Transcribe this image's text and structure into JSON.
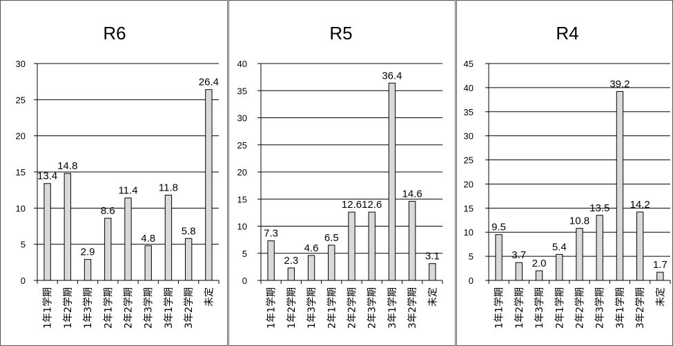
{
  "chart_data": [
    {
      "type": "bar",
      "title": "R6",
      "categories": [
        "1年1学期",
        "1年2学期",
        "1年3学期",
        "2年1学期",
        "2年2学期",
        "2年3学期",
        "3年1学期",
        "3年2学期",
        "未定"
      ],
      "values": [
        13.4,
        14.8,
        2.9,
        8.6,
        11.4,
        4.8,
        11.8,
        5.8,
        26.4
      ],
      "data_labels": [
        "13.4",
        "14.8",
        "2.9",
        "8.6",
        "11.4",
        "4.8",
        "11.8",
        "5.8",
        "26.4"
      ],
      "ylim": [
        0,
        30
      ],
      "yticks": [
        "0",
        "5",
        "10",
        "15",
        "20",
        "25",
        "30"
      ],
      "grid": true,
      "bar_color": "#d9d9d9"
    },
    {
      "type": "bar",
      "title": "R5",
      "categories": [
        "1年1学期",
        "1年2学期",
        "1年3学期",
        "2年1学期",
        "2年2学期",
        "2年3学期",
        "3年1学期",
        "3年2学期",
        "未定"
      ],
      "values": [
        7.3,
        2.3,
        4.6,
        6.5,
        12.6,
        12.6,
        36.4,
        14.6,
        3.1
      ],
      "data_labels": [
        "7.3",
        "2.3",
        "4.6",
        "6.5",
        "12.6",
        "12.6",
        "36.4",
        "14.6",
        "3.1"
      ],
      "ylim": [
        0,
        40
      ],
      "yticks": [
        "0",
        "5",
        "10",
        "15",
        "20",
        "25",
        "30",
        "35",
        "40"
      ],
      "grid": true,
      "bar_color": "#d9d9d9"
    },
    {
      "type": "bar",
      "title": "R4",
      "categories": [
        "1年1学期",
        "1年2学期",
        "1年3学期",
        "2年1学期",
        "2年2学期",
        "2年3学期",
        "3年1学期",
        "3年2学期",
        "未定"
      ],
      "values": [
        9.5,
        3.7,
        2.0,
        5.4,
        10.8,
        13.5,
        39.2,
        14.2,
        1.7
      ],
      "data_labels": [
        "9.5",
        "3.7",
        "2.0",
        "5.4",
        "10.8",
        "13.5",
        "39.2",
        "14.2",
        "1.7"
      ],
      "ylim": [
        0,
        45
      ],
      "yticks": [
        "0",
        "5",
        "10",
        "15",
        "20",
        "25",
        "30",
        "35",
        "40",
        "45"
      ],
      "grid": true,
      "bar_color": "#d9d9d9"
    }
  ]
}
